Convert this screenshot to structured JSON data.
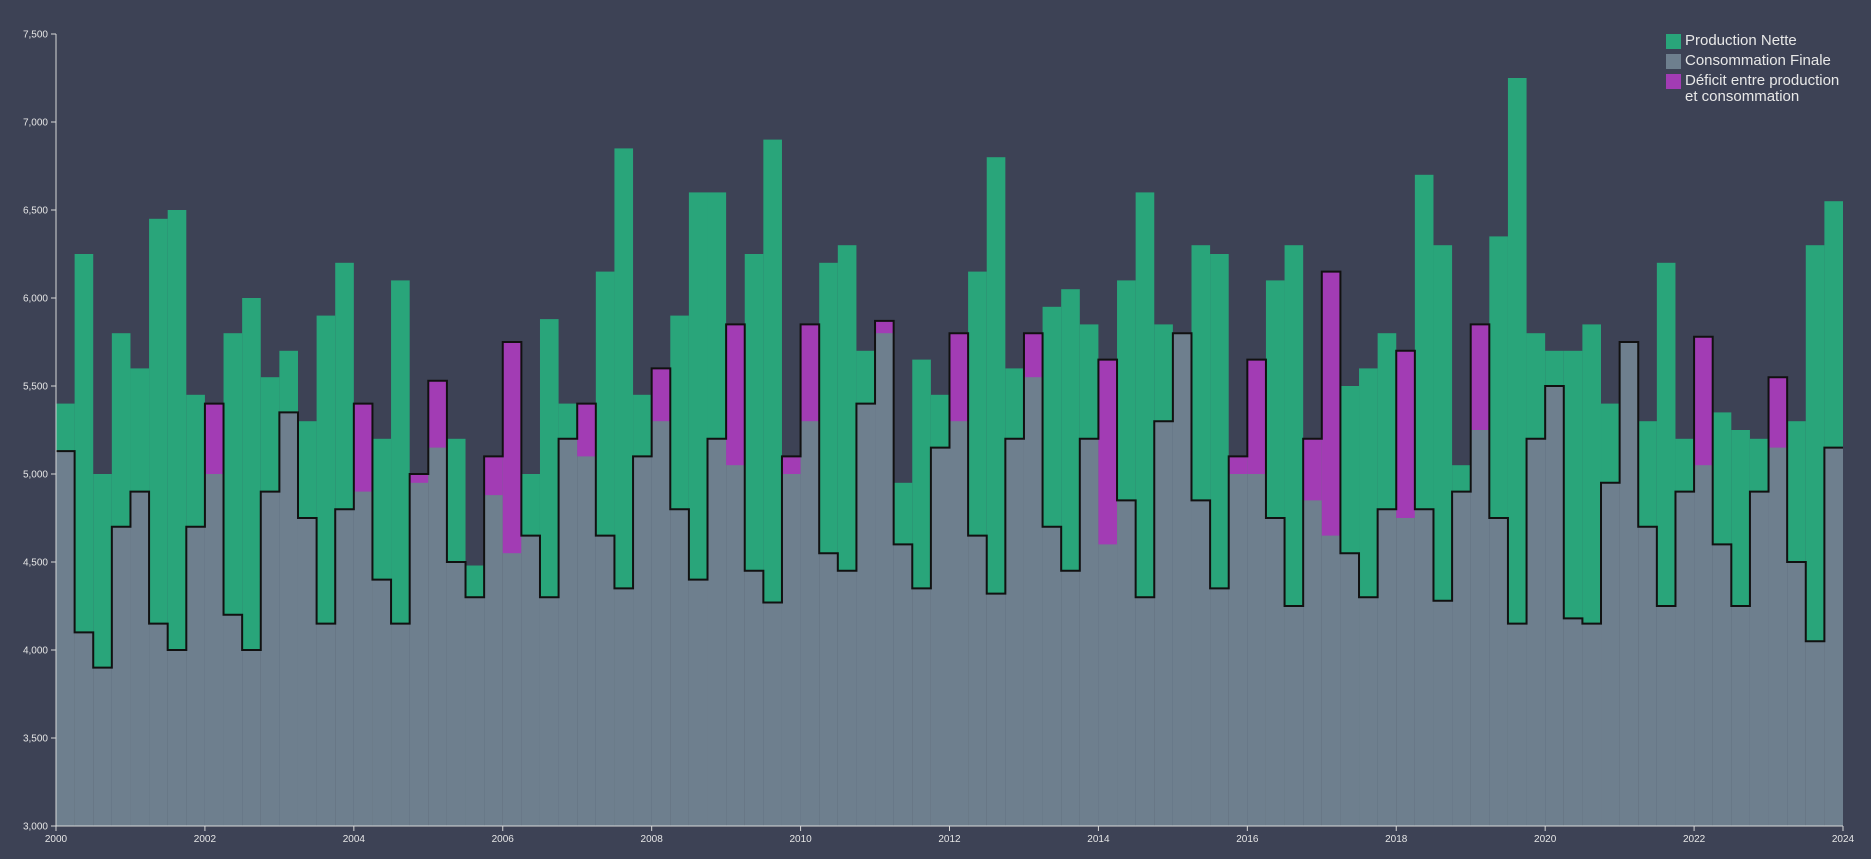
{
  "chart_data": {
    "type": "area",
    "title": "",
    "xlabel": "",
    "ylabel": "",
    "xlim": [
      "2000-01",
      "2024-01"
    ],
    "ylim": [
      3000,
      7500
    ],
    "x_ticks": [
      "2000",
      "2002",
      "2004",
      "2006",
      "2008",
      "2010",
      "2012",
      "2014",
      "2016",
      "2018",
      "2020",
      "2022",
      "2024"
    ],
    "y_ticks": [
      "3,000",
      "3,500",
      "4,000",
      "4,500",
      "5,000",
      "5,500",
      "6,000",
      "6,500",
      "7,000",
      "7,500"
    ],
    "grid": false,
    "legend_position": "top-right",
    "colors": {
      "background": "#3d4255",
      "production": "#29a57a",
      "consommation": "#6e7f8e",
      "deficit": "#a23cb4",
      "consumption_line": "#111111",
      "axis": "#d8d8d8"
    },
    "legend": [
      {
        "key": "production",
        "lines": [
          "Production Nette"
        ]
      },
      {
        "key": "consommation",
        "lines": [
          "Consommation Finale"
        ]
      },
      {
        "key": "deficit",
        "lines": [
          "Déficit entre production",
          "et consommation"
        ]
      }
    ],
    "series": [
      {
        "name": "Production Nette",
        "x": [
          "2000-01",
          "2000-04",
          "2000-07",
          "2000-10",
          "2001-01",
          "2001-04",
          "2001-07",
          "2001-10",
          "2002-01",
          "2002-04",
          "2002-07",
          "2002-10",
          "2003-01",
          "2003-04",
          "2003-07",
          "2003-10",
          "2004-01",
          "2004-04",
          "2004-07",
          "2004-10",
          "2005-01",
          "2005-04",
          "2005-07",
          "2005-10",
          "2006-01",
          "2006-04",
          "2006-07",
          "2006-10",
          "2007-01",
          "2007-04",
          "2007-07",
          "2007-10",
          "2008-01",
          "2008-04",
          "2008-07",
          "2008-10",
          "2009-01",
          "2009-04",
          "2009-07",
          "2009-10",
          "2010-01",
          "2010-04",
          "2010-07",
          "2010-10",
          "2011-01",
          "2011-04",
          "2011-07",
          "2011-10",
          "2012-01",
          "2012-04",
          "2012-07",
          "2012-10",
          "2013-01",
          "2013-04",
          "2013-07",
          "2013-10",
          "2014-01",
          "2014-04",
          "2014-07",
          "2014-10",
          "2015-01",
          "2015-04",
          "2015-07",
          "2015-10",
          "2016-01",
          "2016-04",
          "2016-07",
          "2016-10",
          "2017-01",
          "2017-04",
          "2017-07",
          "2017-10",
          "2018-01",
          "2018-04",
          "2018-07",
          "2018-10",
          "2019-01",
          "2019-04",
          "2019-07",
          "2019-10",
          "2020-01",
          "2020-04",
          "2020-07",
          "2020-10",
          "2021-01",
          "2021-04",
          "2021-07",
          "2021-10",
          "2022-01",
          "2022-04",
          "2022-07",
          "2022-10",
          "2023-01",
          "2023-04",
          "2023-07",
          "2023-10"
        ],
        "values": [
          5400,
          6250,
          5000,
          5800,
          5600,
          6450,
          6500,
          5450,
          5000,
          5800,
          6000,
          5550,
          5700,
          5300,
          5900,
          6200,
          4900,
          5200,
          6100,
          4950,
          5150,
          5200,
          4480,
          4880,
          4550,
          5000,
          5880,
          5400,
          5100,
          6150,
          6850,
          5450,
          5300,
          5900,
          6600,
          6600,
          5050,
          6250,
          6900,
          5000,
          5300,
          6200,
          6300,
          5700,
          5800,
          4950,
          5650,
          5450,
          5300,
          6150,
          6800,
          5600,
          5550,
          5950,
          6050,
          5850,
          4600,
          6100,
          6600,
          5850,
          5800,
          6300,
          6250,
          5000,
          5000,
          6100,
          6300,
          4850,
          4650,
          5500,
          5600,
          5800,
          4750,
          6700,
          6300,
          5050,
          5250,
          6350,
          7250,
          5800,
          5700,
          5700,
          5850,
          5400,
          5750,
          5300,
          6200,
          5200,
          5050,
          5350,
          5250,
          5200,
          5150,
          5300,
          6300,
          6550
        ]
      },
      {
        "name": "Consommation Finale",
        "x": [
          "2000-01",
          "2000-04",
          "2000-07",
          "2000-10",
          "2001-01",
          "2001-04",
          "2001-07",
          "2001-10",
          "2002-01",
          "2002-04",
          "2002-07",
          "2002-10",
          "2003-01",
          "2003-04",
          "2003-07",
          "2003-10",
          "2004-01",
          "2004-04",
          "2004-07",
          "2004-10",
          "2005-01",
          "2005-04",
          "2005-07",
          "2005-10",
          "2006-01",
          "2006-04",
          "2006-07",
          "2006-10",
          "2007-01",
          "2007-04",
          "2007-07",
          "2007-10",
          "2008-01",
          "2008-04",
          "2008-07",
          "2008-10",
          "2009-01",
          "2009-04",
          "2009-07",
          "2009-10",
          "2010-01",
          "2010-04",
          "2010-07",
          "2010-10",
          "2011-01",
          "2011-04",
          "2011-07",
          "2011-10",
          "2012-01",
          "2012-04",
          "2012-07",
          "2012-10",
          "2013-01",
          "2013-04",
          "2013-07",
          "2013-10",
          "2014-01",
          "2014-04",
          "2014-07",
          "2014-10",
          "2015-01",
          "2015-04",
          "2015-07",
          "2015-10",
          "2016-01",
          "2016-04",
          "2016-07",
          "2016-10",
          "2017-01",
          "2017-04",
          "2017-07",
          "2017-10",
          "2018-01",
          "2018-04",
          "2018-07",
          "2018-10",
          "2019-01",
          "2019-04",
          "2019-07",
          "2019-10",
          "2020-01",
          "2020-04",
          "2020-07",
          "2020-10",
          "2021-01",
          "2021-04",
          "2021-07",
          "2021-10",
          "2022-01",
          "2022-04",
          "2022-07",
          "2022-10",
          "2023-01",
          "2023-04",
          "2023-07",
          "2023-10"
        ],
        "values": [
          5130,
          4100,
          3900,
          4700,
          4900,
          4150,
          4000,
          4700,
          5400,
          4200,
          4000,
          4900,
          5350,
          4750,
          4150,
          4800,
          5400,
          4400,
          4150,
          5000,
          5530,
          4500,
          4300,
          5100,
          5750,
          4650,
          4300,
          5200,
          5400,
          4650,
          4350,
          5100,
          5600,
          4800,
          4400,
          5200,
          5850,
          4450,
          4270,
          5100,
          5850,
          4550,
          4450,
          5400,
          5870,
          4600,
          4350,
          5150,
          5800,
          4650,
          4320,
          5200,
          5800,
          4700,
          4450,
          5200,
          5650,
          4850,
          4300,
          5300,
          5800,
          4850,
          4350,
          5100,
          5650,
          4750,
          4250,
          5200,
          6150,
          4550,
          4300,
          4800,
          5700,
          4800,
          4280,
          4900,
          5850,
          4750,
          4150,
          5200,
          5500,
          4180,
          4150,
          4950,
          5750,
          4700,
          4250,
          4900,
          5780,
          4600,
          4250,
          4900,
          5550,
          4500,
          4050,
          5150
        ]
      }
    ]
  }
}
